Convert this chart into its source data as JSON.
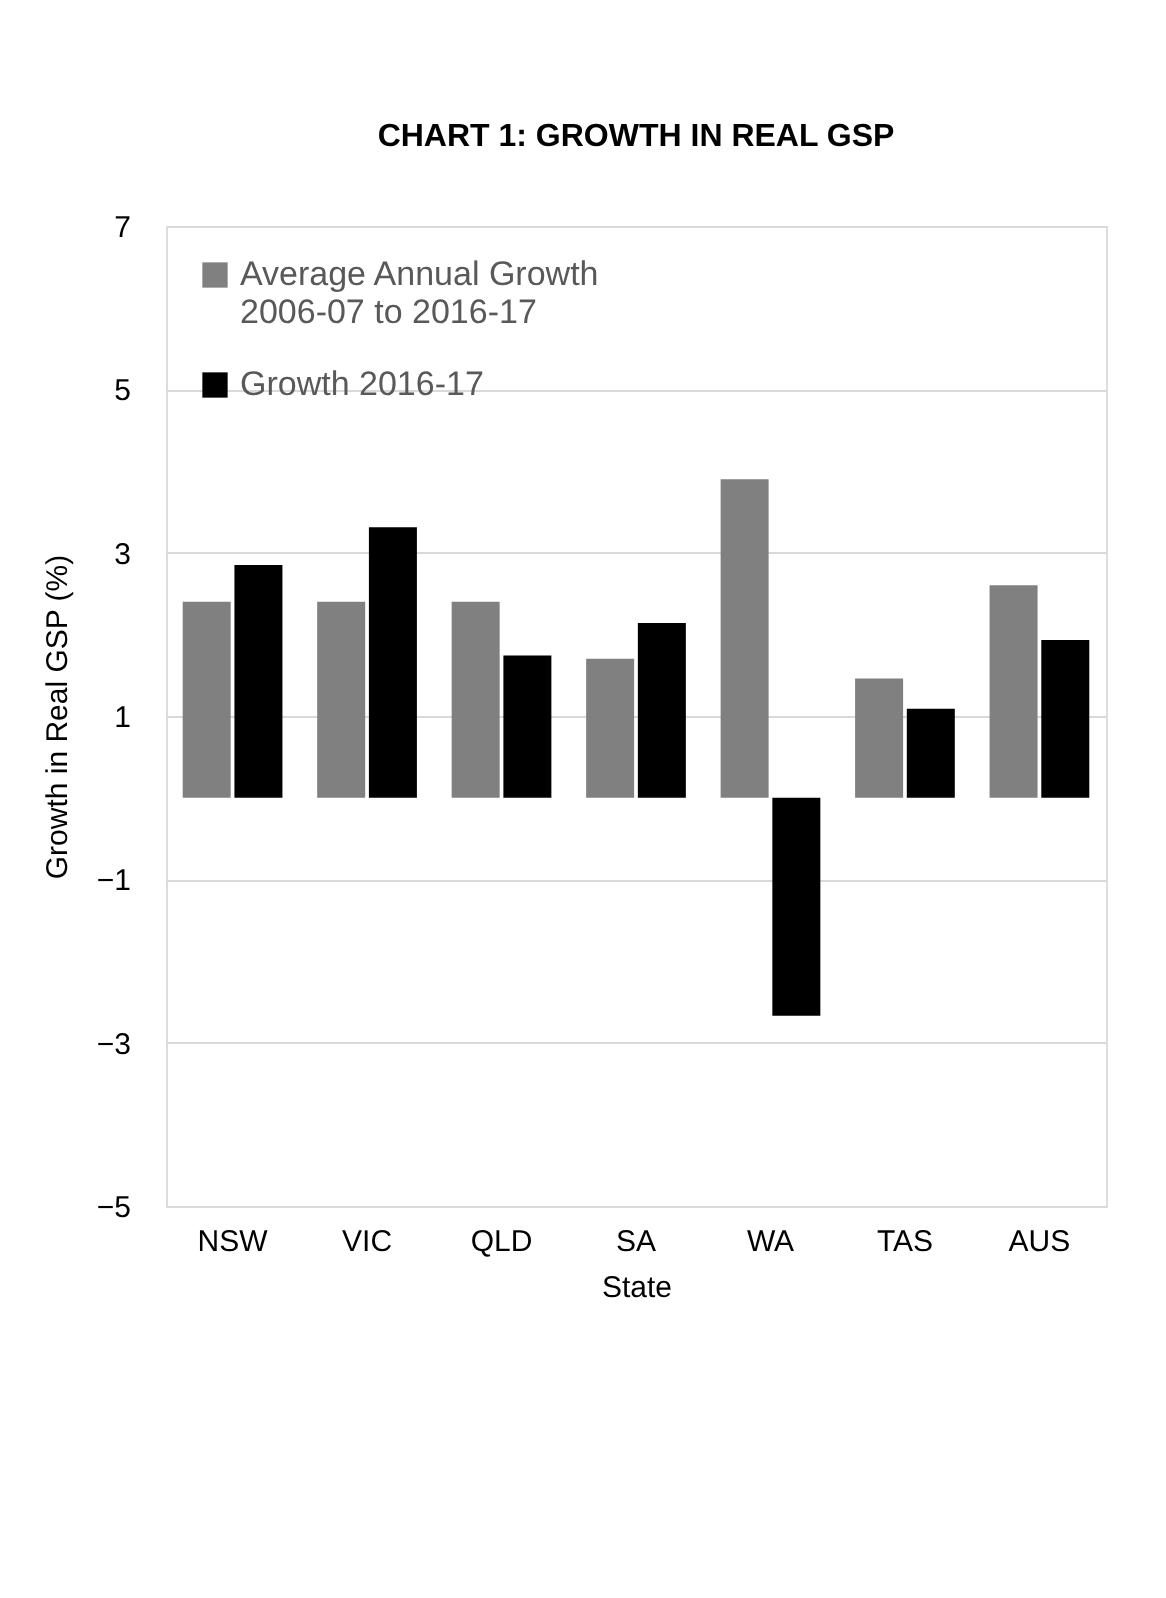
{
  "chart_data": {
    "type": "bar",
    "title": "CHART 1: GROWTH IN REAL GSP",
    "xlabel": "State",
    "ylabel": "Growth in Real GSP (%)",
    "categories": [
      "NSW",
      "VIC",
      "QLD",
      "SA",
      "WA",
      "TAS",
      "AUS"
    ],
    "series": [
      {
        "name": "Average Annual Growth 2006-07 to 2016-17",
        "color": "#808080",
        "values": [
          2.4,
          2.4,
          2.4,
          1.7,
          3.9,
          1.46,
          2.6
        ]
      },
      {
        "name": "Growth 2016-17",
        "color": "#000000",
        "values": [
          2.85,
          3.31,
          1.74,
          2.14,
          -2.67,
          1.09,
          1.93
        ]
      }
    ],
    "ylim": [
      -5,
      7
    ],
    "yticks": [
      -5,
      -3,
      -1,
      1,
      3,
      5,
      7
    ],
    "grid": "y",
    "legend": "top left"
  }
}
